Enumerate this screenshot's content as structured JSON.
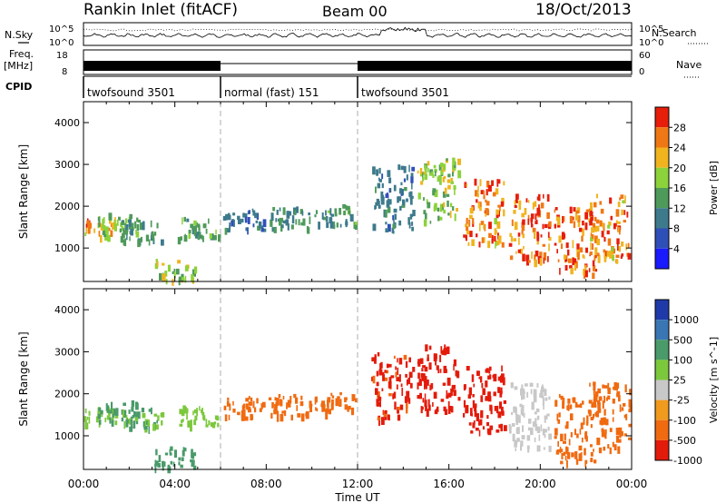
{
  "header": {
    "title": "Rankin Inlet (fitACF)",
    "beam": "Beam 00",
    "date": "18/Oct/2013"
  },
  "side_labels": {
    "nsky": "N.Sky",
    "freq_line1": "Freq.",
    "freq_line2": "[MHz]",
    "cpid": "CPID",
    "nsearch": "N.Search",
    "nave": "Nave"
  },
  "noise_panel": {
    "left_ticks": [
      "10^5",
      "10^0"
    ],
    "right_ticks": [
      "10^5",
      "10^0"
    ]
  },
  "freq_panel": {
    "left_ticks": [
      "18",
      "8"
    ],
    "right_ticks": [
      "60",
      "0"
    ]
  },
  "cpid_segments": [
    {
      "label": "twofsound 3501",
      "start_h": 0,
      "end_h": 6
    },
    {
      "label": "normal (fast) 151",
      "start_h": 6,
      "end_h": 12
    },
    {
      "label": "twofsound 3501",
      "start_h": 12,
      "end_h": 24
    }
  ],
  "x_axis": {
    "label": "Time UT",
    "ticks": [
      "00:00",
      "04:00",
      "08:00",
      "12:00",
      "16:00",
      "20:00",
      "00:00"
    ],
    "range_h": [
      0,
      24
    ]
  },
  "chart_data": [
    {
      "type": "heatmap",
      "name": "power-panel",
      "ylabel": "Slant Range [km]",
      "yticks": [
        "1000",
        "2000",
        "3000",
        "4000"
      ],
      "ylim": [
        200,
        4500
      ],
      "colorbar_label": "Power [dB]",
      "colorbar_ticks": [
        "4",
        "8",
        "12",
        "16",
        "20",
        "24",
        "28"
      ],
      "colors": [
        "#1a1aff",
        "#2f4fb8",
        "#3d7a8c",
        "#4e9a5a",
        "#8cd23a",
        "#f0b41e",
        "#f07814",
        "#e61e0a"
      ],
      "x_values_h": [
        0.5,
        1.5,
        2.5,
        4.0,
        5.0,
        7.0,
        9.0,
        11.0,
        13.5,
        15.5,
        17.5,
        19.5,
        21.5,
        23.0
      ],
      "range_km": [
        1500,
        1600,
        1450,
        500,
        1500,
        1700,
        1750,
        1800,
        2200,
        2400,
        1900,
        1500,
        1200,
        1500
      ],
      "power_db": [
        24,
        16,
        12,
        18,
        14,
        10,
        12,
        14,
        10,
        18,
        26,
        28,
        28,
        26
      ]
    },
    {
      "type": "heatmap",
      "name": "velocity-panel",
      "ylabel": "Slant Range [km]",
      "yticks": [
        "1000",
        "2000",
        "3000",
        "4000"
      ],
      "ylim": [
        200,
        4500
      ],
      "colorbar_label": "Velocity [m s^-1]",
      "colorbar_ticks": [
        "1000",
        "500",
        "100",
        "25",
        "-25",
        "-100",
        "-500",
        "-1000"
      ],
      "colors": [
        "#1f3aa8",
        "#3a76b4",
        "#4a9a6a",
        "#7cc83c",
        "#c8c8c8",
        "#f09a1e",
        "#f06a10",
        "#e31b0b"
      ],
      "x_values_h": [
        0.5,
        1.5,
        2.5,
        4.0,
        5.0,
        7.0,
        9.0,
        11.0,
        13.5,
        15.5,
        17.5,
        19.5,
        21.5,
        23.0
      ],
      "range_km": [
        1500,
        1600,
        1450,
        500,
        1500,
        1700,
        1750,
        1800,
        2200,
        2400,
        1900,
        1500,
        1200,
        1500
      ],
      "velocity_ms": [
        50,
        200,
        100,
        300,
        60,
        -300,
        -300,
        -400,
        -600,
        -800,
        -700,
        -20,
        -300,
        -200
      ]
    }
  ]
}
